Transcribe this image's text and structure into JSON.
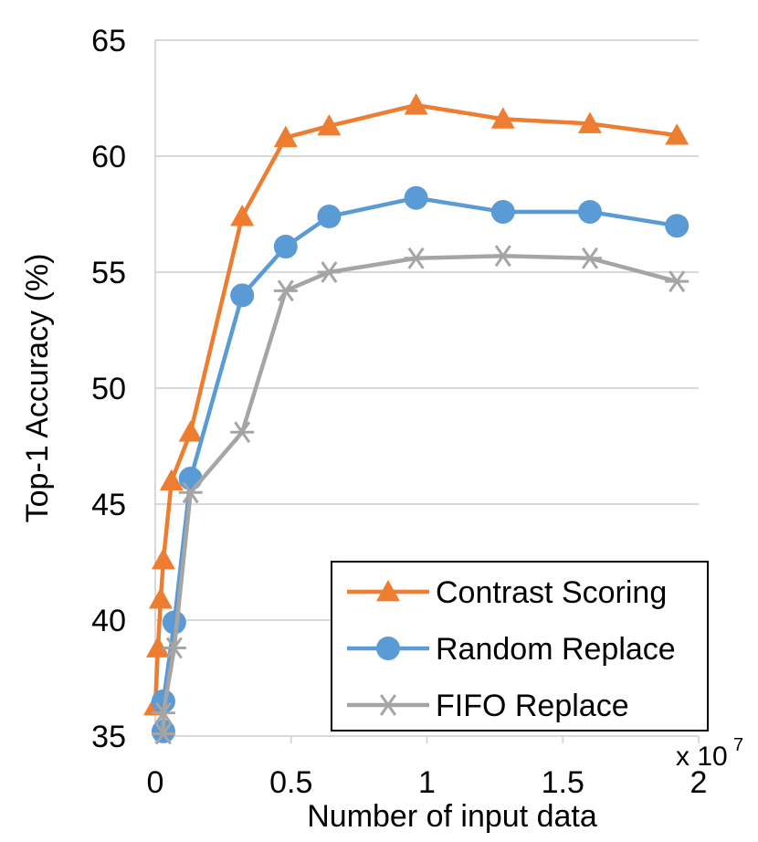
{
  "chart_data": {
    "type": "line",
    "xlabel": "Number of input data",
    "ylabel": "Top-1 Accuracy (%)",
    "x_multiplier_label": "x 10",
    "x_multiplier_exponent": "7",
    "xlim": [
      0,
      2
    ],
    "ylim": [
      35,
      65
    ],
    "x_ticks": [
      "0",
      "0.5",
      "1",
      "1.5",
      "2"
    ],
    "y_ticks": [
      "35",
      "40",
      "45",
      "50",
      "55",
      "60",
      "65"
    ],
    "x_tick_values": [
      0,
      0.5,
      1,
      1.5,
      2
    ],
    "y_tick_values": [
      35,
      40,
      45,
      50,
      55,
      60,
      65
    ],
    "grid": "horizontal",
    "legend_position": "bottom-right",
    "series": [
      {
        "name": "Contrast Scoring",
        "color": "#ED7D31",
        "marker": "triangle",
        "x": [
          0.0,
          0.01,
          0.02,
          0.03,
          0.06,
          0.13,
          0.32,
          0.48,
          0.64,
          0.96,
          1.28,
          1.6,
          1.92
        ],
        "y": [
          36.3,
          38.8,
          40.9,
          42.6,
          46.0,
          48.1,
          57.4,
          60.8,
          61.3,
          62.2,
          61.6,
          61.4,
          60.9
        ]
      },
      {
        "name": "Random Replace",
        "color": "#5B9BD5",
        "marker": "circle",
        "x": [
          0.03,
          0.03,
          0.07,
          0.13,
          0.32,
          0.48,
          0.64,
          0.96,
          1.28,
          1.6,
          1.92
        ],
        "y": [
          35.2,
          36.5,
          39.9,
          46.1,
          54.0,
          56.1,
          57.4,
          58.2,
          57.6,
          57.6,
          57.0
        ]
      },
      {
        "name": "FIFO Replace",
        "color": "#A5A5A5",
        "marker": "star",
        "x": [
          0.03,
          0.03,
          0.07,
          0.13,
          0.32,
          0.48,
          0.64,
          0.96,
          1.28,
          1.6,
          1.92
        ],
        "y": [
          35.1,
          36.0,
          38.8,
          45.5,
          48.1,
          54.2,
          55.0,
          55.6,
          55.7,
          55.6,
          54.6
        ]
      }
    ]
  }
}
